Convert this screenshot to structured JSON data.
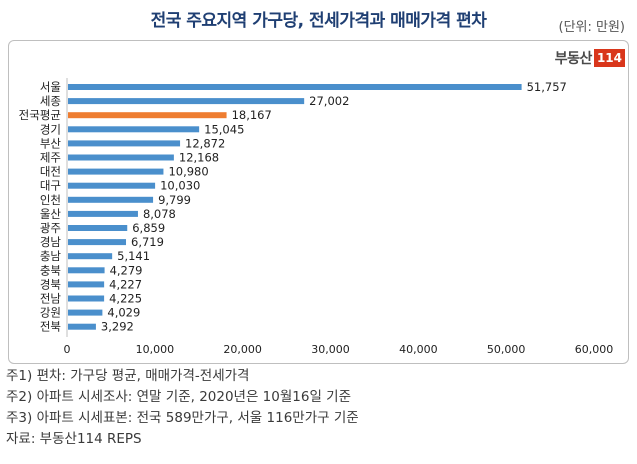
{
  "title": "전국 주요지역 가구당, 전세가격과 매매가격 편차",
  "unit_label": "(단위: 만원)",
  "logo": {
    "text": "부동산",
    "number": "114"
  },
  "colors": {
    "bar": "#4a8fcc",
    "highlight": "#ee7d31",
    "title": "#1f3f73",
    "logo": "#d9361b"
  },
  "chart_data": {
    "type": "bar",
    "orientation": "horizontal",
    "categories": [
      "서울",
      "세종",
      "전국평균",
      "경기",
      "부산",
      "제주",
      "대전",
      "대구",
      "인천",
      "울산",
      "광주",
      "경남",
      "충남",
      "충북",
      "경북",
      "전남",
      "강원",
      "전북"
    ],
    "values": [
      51757,
      27002,
      18167,
      15045,
      12872,
      12168,
      10980,
      10030,
      9799,
      8078,
      6859,
      6719,
      5141,
      4279,
      4227,
      4225,
      4029,
      3292
    ],
    "value_labels": [
      "51,757",
      "27,002",
      "18,167",
      "15,045",
      "12,872",
      "12,168",
      "10,980",
      "10,030",
      "9,799",
      "8,078",
      "6,859",
      "6,719",
      "5,141",
      "4,279",
      "4,227",
      "4,225",
      "4,029",
      "3,292"
    ],
    "highlight_category": "전국평균",
    "xlim": [
      0,
      60000
    ],
    "xticks": [
      0,
      10000,
      20000,
      30000,
      40000,
      50000,
      60000
    ],
    "xtick_labels": [
      "0",
      "10,000",
      "20,000",
      "30,000",
      "40,000",
      "50,000",
      "60,000"
    ],
    "grid": false,
    "legend": "none"
  },
  "notes": [
    "주1) 편차: 가구당 평균, 매매가격-전세가격",
    "주2) 아파트 시세조사: 연말 기준, 2020년은 10월16일 기준",
    "주3) 아파트 시세표본: 전국 589만가구, 서울 116만가구 기준",
    "자료: 부동산114 REPS"
  ]
}
